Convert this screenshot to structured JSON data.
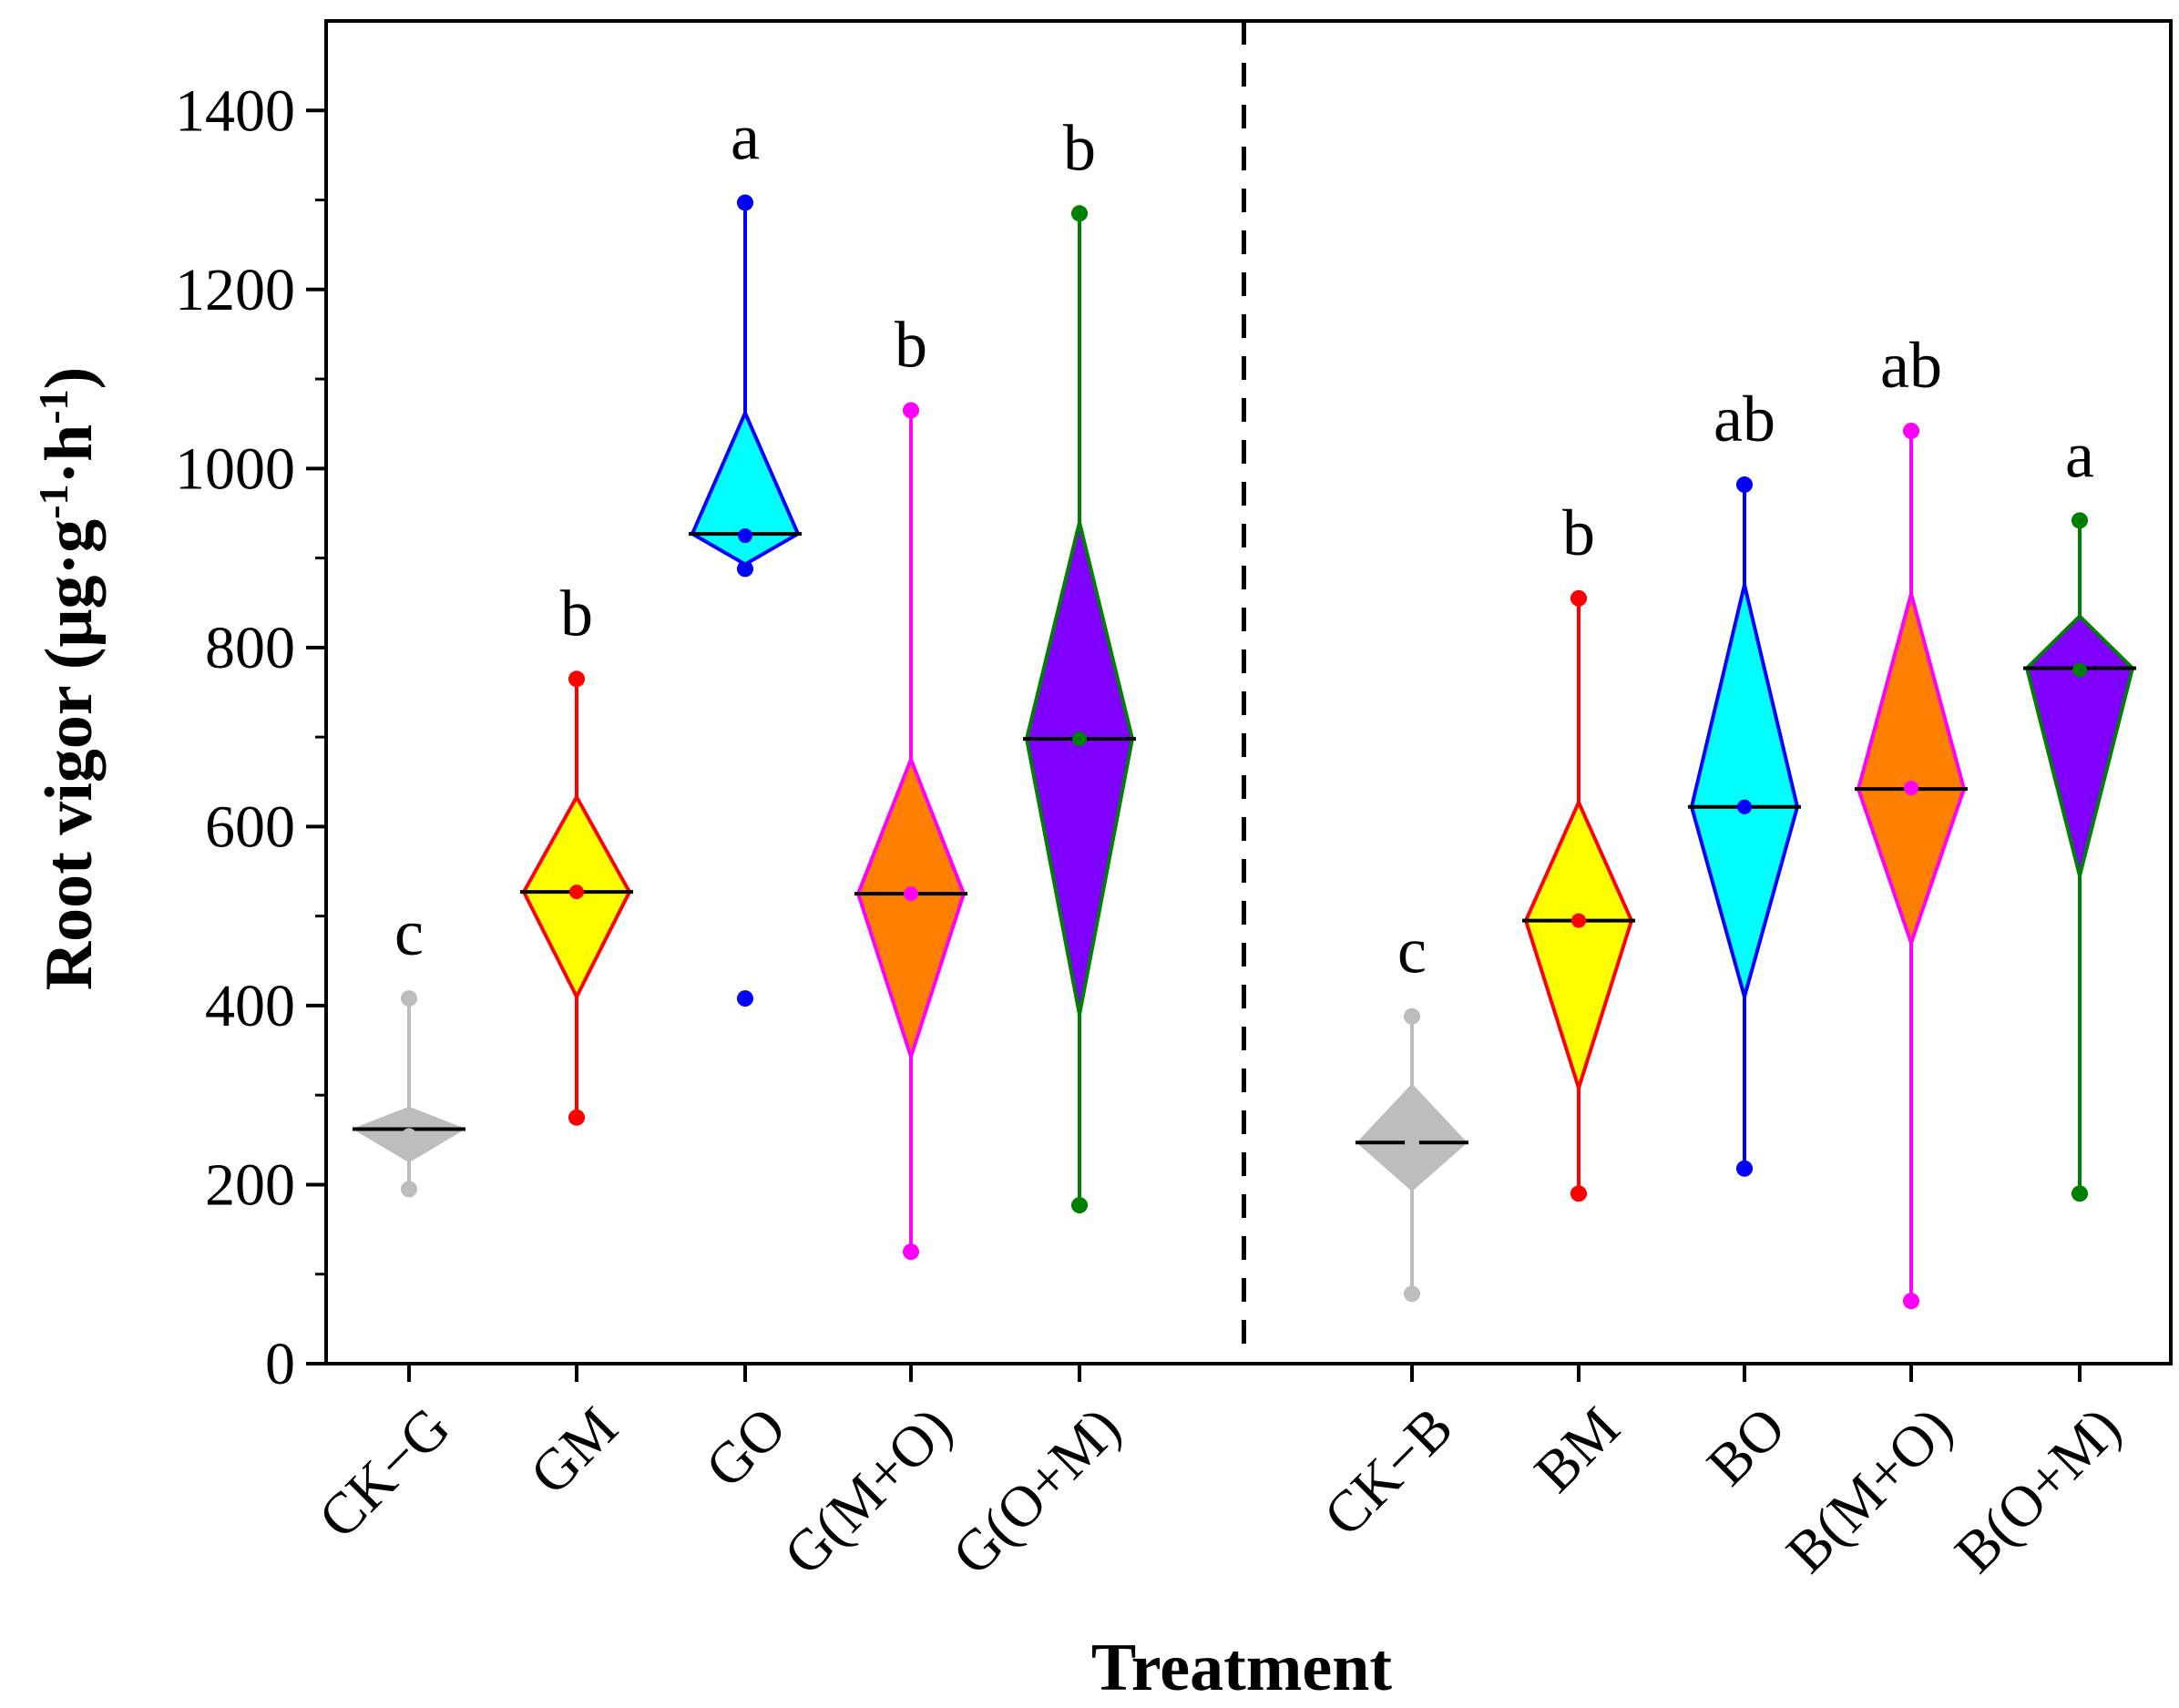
{
  "chart_data": {
    "type": "box",
    "title": "",
    "xlabel": "Treatment",
    "ylabel": {
      "main": "Root vigor (μg·g",
      "sup1": "-1",
      "mid": "·h",
      "sup2": "-1",
      "end": ")"
    },
    "ylim": [
      0,
      1500
    ],
    "yticks": [
      0,
      200,
      400,
      600,
      800,
      1000,
      1200,
      1400
    ],
    "yticks_labels": [
      "0",
      "200",
      "400",
      "600",
      "800",
      "1000",
      "1200",
      "1400"
    ],
    "groups_divider_after_index": 4,
    "categories": [
      "CK−G",
      "GM",
      "GO",
      "G(M+O)",
      "G(O+M)",
      "CK−B",
      "BM",
      "BO",
      "B(M+O)",
      "B(O+M)"
    ],
    "series": [
      {
        "name": "CK−G",
        "min": 195,
        "max": 408,
        "diamond_low": 227,
        "diamond_high": 285,
        "median": 262,
        "mean": 255,
        "letter": "c",
        "fill": "#BDBDBD",
        "stroke": "#BDBDBD",
        "outliers": []
      },
      {
        "name": "GM",
        "min": 275,
        "max": 765,
        "diamond_low": 410,
        "diamond_high": 633,
        "median": 527,
        "mean": 527,
        "letter": "b",
        "fill": "#FFFF00",
        "stroke": "#FF0000",
        "outliers": []
      },
      {
        "name": "GO",
        "min": 888,
        "max": 1297,
        "diamond_low": 893,
        "diamond_high": 1062,
        "median": 927,
        "mean": 925,
        "letter": "a",
        "fill": "#00FFFF",
        "stroke": "#0000FF",
        "outliers": [
          408
        ]
      },
      {
        "name": "G(M+O)",
        "min": 125,
        "max": 1065,
        "diamond_low": 343,
        "diamond_high": 675,
        "median": 525,
        "mean": 525,
        "letter": "b",
        "fill": "#FF8000",
        "stroke": "#FF00FF",
        "outliers": []
      },
      {
        "name": "G(O+M)",
        "min": 177,
        "max": 1285,
        "diamond_low": 390,
        "diamond_high": 940,
        "median": 698,
        "mean": 698,
        "letter": "b",
        "fill": "#8000FF",
        "stroke": "#008000",
        "outliers": []
      },
      {
        "name": "CK−B",
        "min": 78,
        "max": 388,
        "diamond_low": 195,
        "diamond_high": 310,
        "median": 247,
        "mean": 247,
        "letter": "c",
        "fill": "#BDBDBD",
        "stroke": "#BDBDBD",
        "outliers": []
      },
      {
        "name": "BM",
        "min": 190,
        "max": 855,
        "diamond_low": 308,
        "diamond_high": 627,
        "median": 495,
        "mean": 495,
        "letter": "b",
        "fill": "#FFFF00",
        "stroke": "#FF0000",
        "outliers": []
      },
      {
        "name": "BO",
        "min": 218,
        "max": 982,
        "diamond_low": 410,
        "diamond_high": 870,
        "median": 622,
        "mean": 622,
        "letter": "ab",
        "fill": "#00FFFF",
        "stroke": "#0000FF",
        "outliers": []
      },
      {
        "name": "B(M+O)",
        "min": 70,
        "max": 1042,
        "diamond_low": 470,
        "diamond_high": 860,
        "median": 642,
        "mean": 643,
        "letter": "ab",
        "fill": "#FF8000",
        "stroke": "#FF00FF",
        "outliers": []
      },
      {
        "name": "B(O+M)",
        "min": 190,
        "max": 942,
        "diamond_low": 545,
        "diamond_high": 835,
        "median": 777,
        "mean": 775,
        "letter": "a",
        "fill": "#8000FF",
        "stroke": "#008000",
        "outliers": []
      }
    ]
  }
}
